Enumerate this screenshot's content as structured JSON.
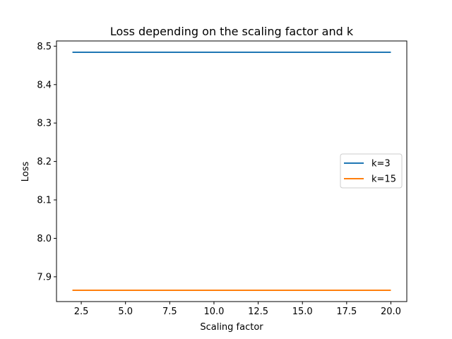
{
  "chart_data": {
    "type": "line",
    "title": "Loss depending on the scaling factor and k",
    "xlabel": "Scaling factor",
    "ylabel": "Loss",
    "xlim": [
      1.1,
      20.9
    ],
    "ylim": [
      7.8355,
      8.5135
    ],
    "xticks": [
      2.5,
      5.0,
      7.5,
      10.0,
      12.5,
      15.0,
      17.5,
      20.0
    ],
    "xtick_labels": [
      "2.5",
      "5.0",
      "7.5",
      "10.0",
      "12.5",
      "15.0",
      "17.5",
      "20.0"
    ],
    "yticks": [
      7.9,
      8.0,
      8.1,
      8.2,
      8.3,
      8.4,
      8.5
    ],
    "ytick_labels": [
      "7.9",
      "8.0",
      "8.1",
      "8.2",
      "8.3",
      "8.4",
      "8.5"
    ],
    "grid": false,
    "legend_position": "center-right",
    "series": [
      {
        "name": "k=3",
        "color": "#1f77b4",
        "x": [
          2,
          20
        ],
        "y": [
          8.484,
          8.484
        ]
      },
      {
        "name": "k=15",
        "color": "#ff7f0e",
        "x": [
          2,
          20
        ],
        "y": [
          7.865,
          7.865
        ]
      }
    ]
  }
}
